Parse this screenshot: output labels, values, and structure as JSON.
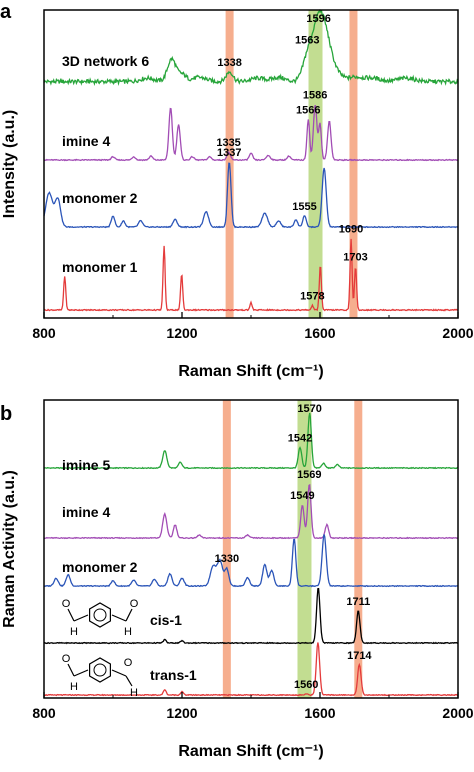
{
  "panels": [
    {
      "label": "a",
      "xlabel": "Raman Shift (cm⁻¹)",
      "ylabel": "Intensity (a.u.)",
      "xlim": [
        800,
        2000
      ],
      "xticks": [
        "800",
        "1200",
        "1600",
        "2000"
      ],
      "bands": [
        {
          "center": 1338,
          "color": "#f4a07a"
        },
        {
          "center": 1587,
          "color": "#b7d77e"
        },
        {
          "center": 1697,
          "color": "#f4a07a"
        }
      ],
      "traces": [
        {
          "name": "3D network 6",
          "color": "#27a53a",
          "baseline": 0.12,
          "peaks": [
            [
              1170,
              0.32,
              12
            ],
            [
              1338,
              0.14,
              10
            ],
            [
              1563,
              0.3,
              14
            ],
            [
              1596,
              0.85,
              18
            ],
            [
              1620,
              0.35,
              16
            ],
            [
              1645,
              0.12,
              18
            ],
            [
              1200,
              0.1,
              12
            ],
            [
              1100,
              0.05,
              20
            ],
            [
              1250,
              0.06,
              20
            ],
            [
              1420,
              0.05,
              20
            ],
            [
              1480,
              0.06,
              18
            ],
            [
              1700,
              0.06,
              20
            ],
            [
              1750,
              0.05,
              25
            ],
            [
              1850,
              0.05,
              25
            ]
          ],
          "labels": [
            {
              "text": "1338",
              "x": 1338
            },
            {
              "text": "1563",
              "x": 1563
            },
            {
              "text": "1596",
              "x": 1596
            }
          ]
        },
        {
          "name": "imine 4",
          "color": "#a24db5",
          "baseline": 0.0,
          "peaks": [
            [
              1167,
              0.8,
              5
            ],
            [
              1190,
              0.55,
              5
            ],
            [
              1335,
              0.12,
              5
            ],
            [
              1400,
              0.1,
              5
            ],
            [
              1566,
              0.62,
              4
            ],
            [
              1586,
              0.85,
              5
            ],
            [
              1600,
              0.55,
              4
            ],
            [
              1627,
              0.6,
              5
            ],
            [
              1110,
              0.06,
              5
            ],
            [
              1060,
              0.05,
              5
            ],
            [
              1000,
              0.05,
              5
            ],
            [
              1230,
              0.05,
              5
            ],
            [
              1280,
              0.05,
              5
            ],
            [
              1450,
              0.07,
              6
            ],
            [
              1510,
              0.06,
              5
            ]
          ],
          "labels": [
            {
              "text": "1335",
              "x": 1335
            },
            {
              "text": "1566",
              "x": 1566
            },
            {
              "text": "1586",
              "x": 1586
            }
          ]
        },
        {
          "name": "monomer 2",
          "color": "#2b55b8",
          "baseline": 0.0,
          "peaks": [
            [
              815,
              0.55,
              10
            ],
            [
              840,
              0.45,
              8
            ],
            [
              1000,
              0.18,
              5
            ],
            [
              1030,
              0.1,
              5
            ],
            [
              1080,
              0.1,
              6
            ],
            [
              1180,
              0.12,
              6
            ],
            [
              1270,
              0.25,
              7
            ],
            [
              1337,
              1.05,
              5
            ],
            [
              1440,
              0.22,
              8
            ],
            [
              1480,
              0.1,
              6
            ],
            [
              1530,
              0.12,
              5
            ],
            [
              1555,
              0.18,
              5
            ],
            [
              1612,
              0.95,
              6
            ]
          ],
          "labels": [
            {
              "text": "1337",
              "x": 1337
            },
            {
              "text": "1555",
              "x": 1555
            }
          ]
        },
        {
          "name": "monomer 1",
          "color": "#e43b3b",
          "baseline": 0.0,
          "peaks": [
            [
              860,
              0.45,
              3
            ],
            [
              1148,
              0.85,
              3
            ],
            [
              1199,
              0.48,
              3
            ],
            [
              1400,
              0.1,
              3
            ],
            [
              1578,
              0.06,
              3
            ],
            [
              1601,
              0.6,
              3
            ],
            [
              1690,
              0.95,
              3
            ],
            [
              1703,
              0.58,
              3
            ]
          ],
          "labels": [
            {
              "text": "1578",
              "x": 1578
            },
            {
              "text": "1690",
              "x": 1690
            },
            {
              "text": "1703",
              "x": 1703
            }
          ]
        }
      ]
    },
    {
      "label": "b",
      "xlabel": "Raman Shift (cm⁻¹)",
      "ylabel": "Raman Activity (a.u.)",
      "xlim": [
        800,
        2000
      ],
      "xticks": [
        "800",
        "1200",
        "1600",
        "2000"
      ],
      "bands": [
        {
          "center": 1330,
          "color": "#f4a07a"
        },
        {
          "center": 1555,
          "color": "#b7d77e"
        },
        {
          "center": 1711,
          "color": "#f4a07a"
        }
      ],
      "traces": [
        {
          "name": "imine 5",
          "color": "#27a53a",
          "baseline": 0.0,
          "peaks": [
            [
              1150,
              0.3,
              6
            ],
            [
              1195,
              0.1,
              5
            ],
            [
              1542,
              0.35,
              5
            ],
            [
              1570,
              0.95,
              5
            ],
            [
              1610,
              0.08,
              5
            ],
            [
              1650,
              0.06,
              5
            ]
          ],
          "labels": [
            {
              "text": "1542",
              "x": 1542
            },
            {
              "text": "1570",
              "x": 1570
            }
          ]
        },
        {
          "name": "imine 4",
          "color": "#a24db5",
          "baseline": 0.0,
          "peaks": [
            [
              1150,
              0.4,
              6
            ],
            [
              1180,
              0.22,
              5
            ],
            [
              1549,
              0.55,
              5
            ],
            [
              1569,
              0.9,
              5
            ],
            [
              1620,
              0.22,
              5
            ],
            [
              1250,
              0.05,
              5
            ],
            [
              1390,
              0.05,
              5
            ]
          ],
          "labels": [
            {
              "text": "1549",
              "x": 1549
            },
            {
              "text": "1569",
              "x": 1569
            }
          ]
        },
        {
          "name": "monomer 2",
          "color": "#2b55b8",
          "baseline": 0.0,
          "peaks": [
            [
              835,
              0.14,
              6
            ],
            [
              870,
              0.2,
              6
            ],
            [
              1000,
              0.1,
              5
            ],
            [
              1060,
              0.1,
              6
            ],
            [
              1120,
              0.12,
              6
            ],
            [
              1165,
              0.22,
              6
            ],
            [
              1200,
              0.14,
              6
            ],
            [
              1290,
              0.35,
              8
            ],
            [
              1310,
              0.45,
              8
            ],
            [
              1330,
              0.3,
              6
            ],
            [
              1390,
              0.15,
              6
            ],
            [
              1440,
              0.38,
              6
            ],
            [
              1460,
              0.28,
              6
            ],
            [
              1525,
              0.85,
              5
            ],
            [
              1612,
              0.92,
              6
            ]
          ],
          "labels": [
            {
              "text": "1330",
              "x": 1330
            }
          ]
        },
        {
          "name": "cis-1",
          "color": "#000000",
          "baseline": 0.0,
          "peaks": [
            [
              1150,
              0.06,
              4
            ],
            [
              1200,
              0.04,
              4
            ],
            [
              1595,
              0.95,
              5
            ],
            [
              1711,
              0.55,
              5
            ]
          ],
          "labels": [
            {
              "text": "1711",
              "x": 1711
            }
          ]
        },
        {
          "name": "trans-1",
          "color": "#e43b3b",
          "baseline": 0.0,
          "peaks": [
            [
              1150,
              0.1,
              4
            ],
            [
              1200,
              0.06,
              4
            ],
            [
              1560,
              0.02,
              4
            ],
            [
              1594,
              0.95,
              5
            ],
            [
              1714,
              0.55,
              5
            ]
          ],
          "labels": [
            {
              "text": "1560",
              "x": 1560
            },
            {
              "text": "1714",
              "x": 1714
            }
          ]
        }
      ]
    }
  ],
  "chart_data": [
    {
      "type": "line",
      "panel": "a",
      "xlabel": "Raman Shift (cm⁻¹)",
      "ylabel": "Intensity (a.u.)",
      "xlim": [
        800,
        2000
      ],
      "series": [
        {
          "name": "3D network 6",
          "peaks_cm-1": [
            1338,
            1563,
            1596
          ]
        },
        {
          "name": "imine 4",
          "peaks_cm-1": [
            1335,
            1566,
            1586
          ]
        },
        {
          "name": "monomer 2",
          "peaks_cm-1": [
            1337,
            1555
          ]
        },
        {
          "name": "monomer 1",
          "peaks_cm-1": [
            1578,
            1690,
            1703
          ]
        }
      ]
    },
    {
      "type": "line",
      "panel": "b",
      "xlabel": "Raman Shift (cm⁻¹)",
      "ylabel": "Raman Activity (a.u.)",
      "xlim": [
        800,
        2000
      ],
      "series": [
        {
          "name": "imine 5",
          "peaks_cm-1": [
            1542,
            1570
          ]
        },
        {
          "name": "imine 4",
          "peaks_cm-1": [
            1549,
            1569
          ]
        },
        {
          "name": "monomer 2",
          "peaks_cm-1": [
            1330
          ]
        },
        {
          "name": "cis-1",
          "peaks_cm-1": [
            1711
          ]
        },
        {
          "name": "trans-1",
          "peaks_cm-1": [
            1560,
            1714
          ]
        }
      ]
    }
  ]
}
